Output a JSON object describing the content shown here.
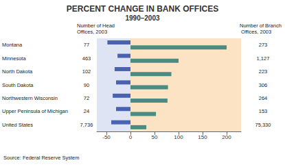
{
  "chart_data": {
    "type": "bar",
    "title": "PERCENT CHANGE IN BANK OFFICES",
    "subtitle": "1990–2003",
    "orientation": "horizontal",
    "categories": [
      "Montana",
      "Minnesota",
      "North Dakota",
      "South Dakota",
      "Northwestern Wisconsin",
      "Upper Peninsula of Michigan",
      "United States"
    ],
    "series": [
      {
        "color": "#4a63b0",
        "values": [
          -48,
          -27,
          -33,
          -30,
          -37,
          -30,
          -40
        ]
      },
      {
        "color": "#4a8c82",
        "values": [
          200,
          100,
          85,
          78,
          77,
          53,
          33
        ]
      }
    ],
    "xlim": [
      -70,
      230
    ],
    "xticks": [
      -50,
      0,
      50,
      100,
      150,
      200
    ],
    "grid": false,
    "head_offices_2003": {
      "label": "Number of Head Offices, 2003",
      "values": [
        77,
        463,
        102,
        90,
        72,
        24,
        7736
      ],
      "value_labels": [
        "77",
        "463",
        "102",
        "90",
        "72",
        "24",
        "7,736"
      ]
    },
    "branch_offices_2003": {
      "label": "Number of Branch Offices, 2003",
      "values": [
        273,
        1127,
        223,
        306,
        264,
        153,
        75330
      ],
      "value_labels": [
        "273",
        "1,127",
        "223",
        "306",
        "264",
        "153",
        "75,330"
      ]
    },
    "source": "Source: Federal Reserve System"
  }
}
